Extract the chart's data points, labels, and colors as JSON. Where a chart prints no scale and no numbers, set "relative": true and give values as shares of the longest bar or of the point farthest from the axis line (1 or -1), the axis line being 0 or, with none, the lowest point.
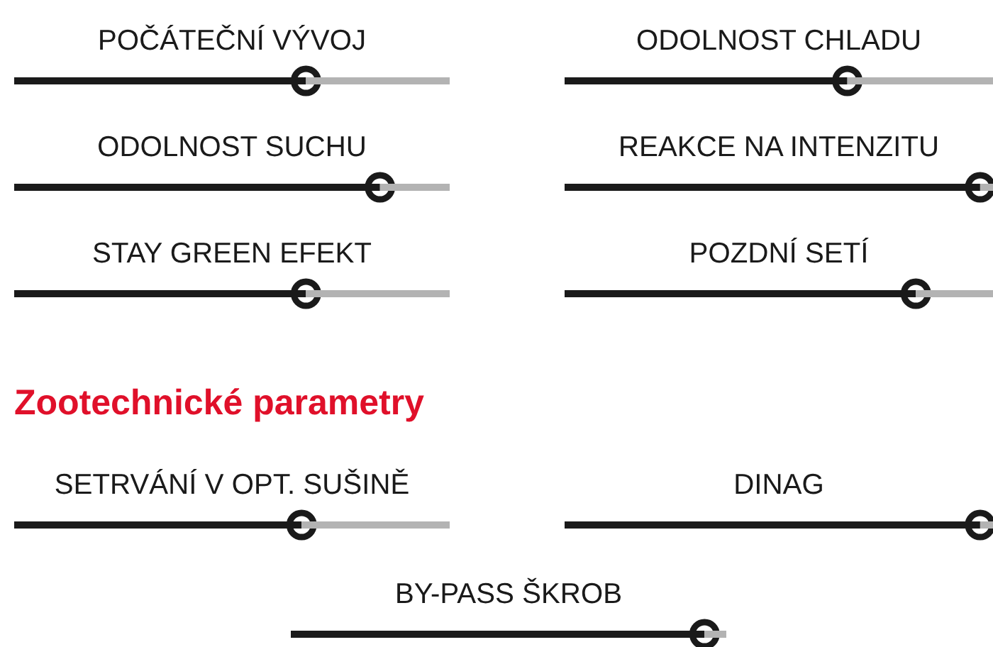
{
  "chart_data": [
    {
      "type": "bar",
      "orientation": "horizontal",
      "relative": true,
      "stacked": true,
      "marker": "circle",
      "categories": [
        "POČÁTEČNÍ VÝVOJ",
        "ODOLNOST SUCHU",
        "STAY GREEN EFEKT"
      ],
      "series": [
        {
          "color": "#1a1a1a",
          "values": [
            0.67,
            0.84,
            0.67
          ]
        },
        {
          "color": "#b3b3b3",
          "values": [
            0.33,
            0.16,
            0.33
          ]
        }
      ]
    },
    {
      "type": "bar",
      "orientation": "horizontal",
      "relative": true,
      "stacked": true,
      "marker": "circle",
      "categories": [
        "ODOLNOST CHLADU",
        "REAKCE NA INTENZITU",
        "POZDNÍ SETÍ"
      ],
      "series": [
        {
          "color": "#1a1a1a",
          "values": [
            0.66,
            0.97,
            0.82
          ]
        },
        {
          "color": "#b3b3b3",
          "values": [
            0.34,
            0.03,
            0.18
          ]
        }
      ]
    },
    {
      "type": "bar",
      "orientation": "horizontal",
      "relative": true,
      "stacked": true,
      "marker": "circle",
      "title": "Zootechnické parametry",
      "categories": [
        "SETRVÁNÍ V OPT. SUŠINĚ"
      ],
      "series": [
        {
          "color": "#1a1a1a",
          "values": [
            0.66
          ]
        },
        {
          "color": "#b3b3b3",
          "values": [
            0.34
          ]
        }
      ]
    },
    {
      "type": "bar",
      "orientation": "horizontal",
      "relative": true,
      "stacked": true,
      "marker": "circle",
      "categories": [
        "DINAG"
      ],
      "series": [
        {
          "color": "#1a1a1a",
          "values": [
            0.97
          ]
        },
        {
          "color": "#b3b3b3",
          "values": [
            0.03
          ]
        }
      ]
    },
    {
      "type": "bar",
      "orientation": "horizontal",
      "relative": true,
      "stacked": true,
      "marker": "circle",
      "categories": [
        "BY-PASS ŠKROB"
      ],
      "series": [
        {
          "color": "#1a1a1a",
          "values": [
            0.95
          ]
        },
        {
          "color": "#b3b3b3",
          "values": [
            0.05
          ]
        }
      ]
    }
  ]
}
